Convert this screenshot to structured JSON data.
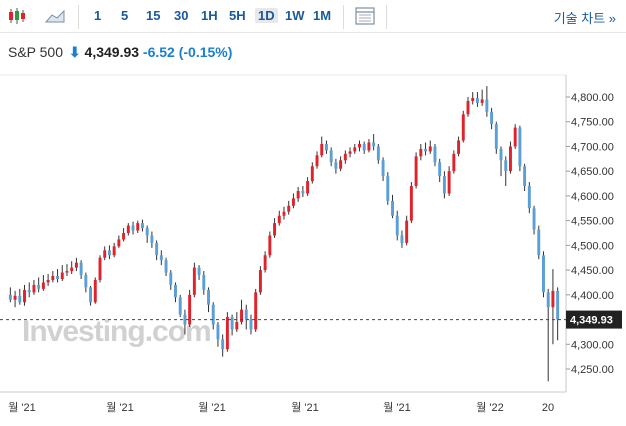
{
  "toolbar": {
    "timeframes": [
      "1",
      "5",
      "15",
      "30",
      "1H",
      "5H",
      "1D",
      "1W",
      "1M"
    ],
    "active_timeframe": "1D",
    "tech_chart_label": "기술 차트 »"
  },
  "quote": {
    "name": "S&P 500",
    "price": "4,349.93",
    "change": "-6.52",
    "change_pct": "(-0.15%)"
  },
  "watermark": "Investing.com",
  "colors": {
    "up": "#e0222a",
    "down": "#5b9fd6",
    "wick": "#333333",
    "price_label_bg": "#222222",
    "link": "#1a5a9a"
  },
  "chart_data": {
    "type": "candlestick",
    "title": "S&P 500",
    "xlabel": "",
    "ylabel": "",
    "ylim": [
      4210,
      4830
    ],
    "y_ticks": [
      "4,250.00",
      "4,300.00",
      "4,350.00",
      "4,400.00",
      "4,450.00",
      "4,500.00",
      "4,550.00",
      "4,600.00",
      "4,650.00",
      "4,700.00",
      "4,750.00",
      "4,800.00"
    ],
    "y_tick_values": [
      4250,
      4300,
      4350,
      4400,
      4450,
      4500,
      4550,
      4600,
      4650,
      4700,
      4750,
      4800
    ],
    "x_ticks": [
      "월 '21",
      "월 '21",
      "월 '21",
      "월 '21",
      "월 '21",
      "월 '22",
      "20"
    ],
    "last_price": 4349.93,
    "last_price_label": "4,349.93",
    "candles": [
      [
        4400,
        4390,
        4415,
        4385
      ],
      [
        4390,
        4398,
        4408,
        4375
      ],
      [
        4398,
        4385,
        4412,
        4380
      ],
      [
        4385,
        4410,
        4420,
        4378
      ],
      [
        4410,
        4405,
        4425,
        4395
      ],
      [
        4405,
        4420,
        4430,
        4400
      ],
      [
        4420,
        4412,
        4435,
        4405
      ],
      [
        4412,
        4425,
        4440,
        4408
      ],
      [
        4425,
        4430,
        4442,
        4418
      ],
      [
        4430,
        4438,
        4448,
        4425
      ],
      [
        4438,
        4432,
        4452,
        4425
      ],
      [
        4432,
        4445,
        4460,
        4428
      ],
      [
        4445,
        4448,
        4462,
        4438
      ],
      [
        4448,
        4455,
        4468,
        4442
      ],
      [
        4455,
        4465,
        4475,
        4448
      ],
      [
        4465,
        4440,
        4470,
        4432
      ],
      [
        4440,
        4415,
        4445,
        4405
      ],
      [
        4415,
        4385,
        4418,
        4378
      ],
      [
        4385,
        4430,
        4435,
        4382
      ],
      [
        4430,
        4475,
        4480,
        4425
      ],
      [
        4475,
        4490,
        4498,
        4470
      ],
      [
        4490,
        4480,
        4500,
        4472
      ],
      [
        4480,
        4498,
        4505,
        4476
      ],
      [
        4498,
        4512,
        4520,
        4495
      ],
      [
        4512,
        4525,
        4535,
        4508
      ],
      [
        4525,
        4540,
        4545,
        4520
      ],
      [
        4540,
        4530,
        4548,
        4522
      ],
      [
        4530,
        4545,
        4550,
        4525
      ],
      [
        4545,
        4535,
        4552,
        4528
      ],
      [
        4535,
        4520,
        4540,
        4505
      ],
      [
        4520,
        4505,
        4528,
        4495
      ],
      [
        4505,
        4480,
        4510,
        4470
      ],
      [
        4480,
        4470,
        4490,
        4460
      ],
      [
        4470,
        4445,
        4475,
        4438
      ],
      [
        4445,
        4420,
        4450,
        4410
      ],
      [
        4420,
        4395,
        4425,
        4385
      ],
      [
        4395,
        4360,
        4400,
        4355
      ],
      [
        4360,
        4340,
        4370,
        4320
      ],
      [
        4340,
        4400,
        4410,
        4335
      ],
      [
        4400,
        4455,
        4465,
        4395
      ],
      [
        4455,
        4440,
        4460,
        4430
      ],
      [
        4440,
        4410,
        4448,
        4400
      ],
      [
        4410,
        4380,
        4415,
        4365
      ],
      [
        4380,
        4340,
        4385,
        4330
      ],
      [
        4340,
        4310,
        4345,
        4295
      ],
      [
        4310,
        4290,
        4320,
        4275
      ],
      [
        4290,
        4355,
        4365,
        4285
      ],
      [
        4355,
        4330,
        4360,
        4318
      ],
      [
        4330,
        4345,
        4365,
        4325
      ],
      [
        4345,
        4370,
        4390,
        4340
      ],
      [
        4370,
        4350,
        4380,
        4330
      ],
      [
        4350,
        4330,
        4360,
        4320
      ],
      [
        4330,
        4405,
        4412,
        4325
      ],
      [
        4405,
        4450,
        4458,
        4400
      ],
      [
        4450,
        4480,
        4488,
        4445
      ],
      [
        4480,
        4520,
        4528,
        4475
      ],
      [
        4520,
        4545,
        4555,
        4515
      ],
      [
        4545,
        4560,
        4570,
        4540
      ],
      [
        4560,
        4568,
        4578,
        4552
      ],
      [
        4568,
        4580,
        4590,
        4562
      ],
      [
        4580,
        4595,
        4605,
        4575
      ],
      [
        4595,
        4610,
        4618,
        4588
      ],
      [
        4610,
        4605,
        4620,
        4598
      ],
      [
        4605,
        4630,
        4638,
        4600
      ],
      [
        4630,
        4660,
        4668,
        4625
      ],
      [
        4660,
        4682,
        4690,
        4655
      ],
      [
        4682,
        4705,
        4720,
        4678
      ],
      [
        4705,
        4692,
        4712,
        4685
      ],
      [
        4692,
        4668,
        4698,
        4660
      ],
      [
        4668,
        4655,
        4675,
        4645
      ],
      [
        4655,
        4672,
        4680,
        4650
      ],
      [
        4672,
        4685,
        4692,
        4665
      ],
      [
        4685,
        4690,
        4698,
        4678
      ],
      [
        4690,
        4698,
        4705,
        4685
      ],
      [
        4698,
        4705,
        4712,
        4690
      ],
      [
        4705,
        4692,
        4710,
        4685
      ],
      [
        4692,
        4708,
        4715,
        4688
      ],
      [
        4708,
        4700,
        4725,
        4692
      ],
      [
        4700,
        4672,
        4705,
        4665
      ],
      [
        4672,
        4640,
        4678,
        4630
      ],
      [
        4640,
        4590,
        4648,
        4582
      ],
      [
        4590,
        4560,
        4602,
        4555
      ],
      [
        4560,
        4520,
        4570,
        4510
      ],
      [
        4520,
        4505,
        4530,
        4495
      ],
      [
        4505,
        4550,
        4560,
        4500
      ],
      [
        4550,
        4620,
        4628,
        4545
      ],
      [
        4620,
        4680,
        4688,
        4615
      ],
      [
        4680,
        4695,
        4705,
        4672
      ],
      [
        4695,
        4690,
        4708,
        4682
      ],
      [
        4690,
        4700,
        4712,
        4685
      ],
      [
        4700,
        4668,
        4705,
        4660
      ],
      [
        4668,
        4640,
        4675,
        4628
      ],
      [
        4640,
        4605,
        4650,
        4595
      ],
      [
        4605,
        4650,
        4660,
        4600
      ],
      [
        4650,
        4685,
        4692,
        4645
      ],
      [
        4685,
        4712,
        4720,
        4680
      ],
      [
        4712,
        4765,
        4772,
        4708
      ],
      [
        4765,
        4792,
        4800,
        4760
      ],
      [
        4792,
        4798,
        4810,
        4785
      ],
      [
        4798,
        4788,
        4810,
        4780
      ],
      [
        4788,
        4795,
        4815,
        4782
      ],
      [
        4795,
        4770,
        4822,
        4760
      ],
      [
        4770,
        4745,
        4778,
        4735
      ],
      [
        4745,
        4695,
        4750,
        4685
      ],
      [
        4695,
        4672,
        4700,
        4640
      ],
      [
        4672,
        4650,
        4680,
        4620
      ],
      [
        4650,
        4700,
        4710,
        4645
      ],
      [
        4700,
        4738,
        4745,
        4695
      ],
      [
        4738,
        4660,
        4742,
        4650
      ],
      [
        4660,
        4620,
        4665,
        4610
      ],
      [
        4620,
        4575,
        4628,
        4565
      ],
      [
        4575,
        4532,
        4580,
        4522
      ],
      [
        4532,
        4480,
        4540,
        4472
      ],
      [
        4480,
        4405,
        4488,
        4395
      ],
      [
        4405,
        4375,
        4412,
        4225
      ],
      [
        4375,
        4408,
        4452,
        4300
      ],
      [
        4408,
        4349.93,
        4415,
        4308
      ]
    ]
  }
}
